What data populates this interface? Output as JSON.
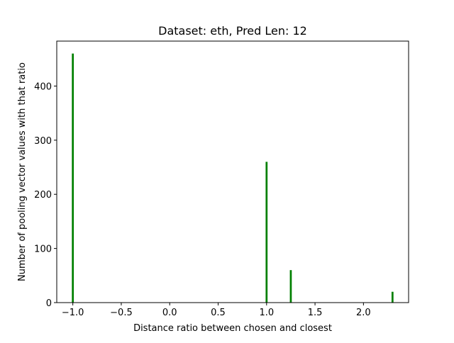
{
  "chart_data": {
    "type": "bar",
    "title": "Dataset: eth, Pred Len: 12",
    "xlabel": "Distance ratio between chosen and closest",
    "ylabel": "Number of pooling vector values with that ratio",
    "bar_color": "#008000",
    "xlim": [
      -1.166,
      2.466
    ],
    "ylim": [
      0,
      483
    ],
    "x_ticks": [
      -1.0,
      -0.5,
      0.0,
      0.5,
      1.0,
      1.5,
      2.0
    ],
    "x_tick_labels": [
      "−1.0",
      "−0.5",
      "0.0",
      "0.5",
      "1.0",
      "1.5",
      "2.0"
    ],
    "y_ticks": [
      0,
      100,
      200,
      300,
      400
    ],
    "y_tick_labels": [
      "0",
      "100",
      "200",
      "300",
      "400"
    ],
    "series": [
      {
        "x": [
          -1.0,
          1.0,
          1.25,
          2.3
        ],
        "values": [
          460,
          260,
          60,
          20
        ]
      }
    ],
    "bar_width": 0.02,
    "grid": false
  }
}
